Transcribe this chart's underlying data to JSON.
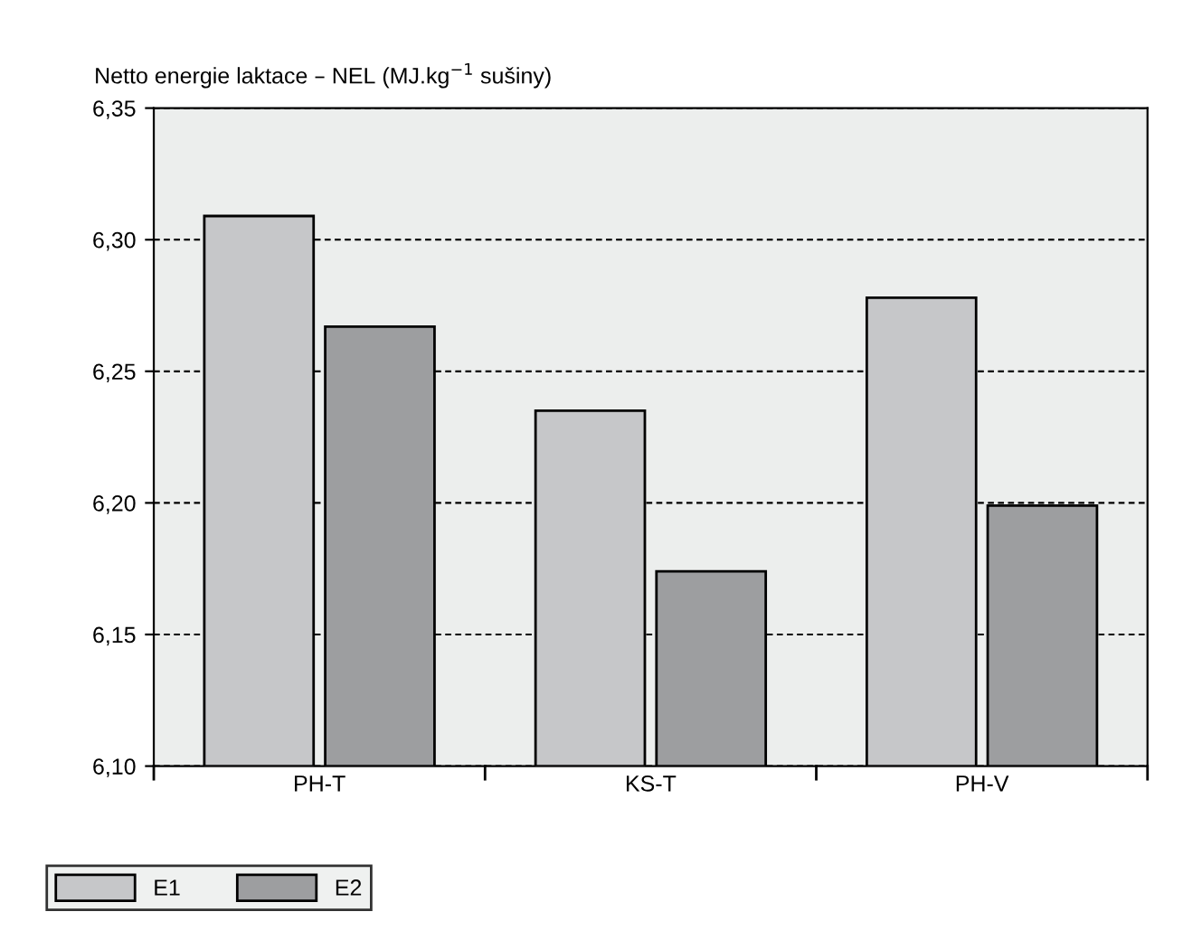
{
  "chart_data": {
    "type": "bar",
    "ylabel": "Netto energie laktace – NEL (MJ.kg$^{−1}$ sušiny)",
    "categories": [
      "PH-T",
      "KS-T",
      "PH-V"
    ],
    "series": [
      {
        "name": "E1",
        "color": "#c6c7c9",
        "values": [
          6.309,
          6.235,
          6.278
        ]
      },
      {
        "name": "E2",
        "color": "#9d9ea0",
        "values": [
          6.267,
          6.174,
          6.199
        ]
      }
    ],
    "ylim": [
      6.1,
      6.35
    ],
    "yticks": [
      {
        "value": 6.1,
        "label": "6,10"
      },
      {
        "value": 6.15,
        "label": "6,15"
      },
      {
        "value": 6.2,
        "label": "6,20"
      },
      {
        "value": 6.25,
        "label": "6,25"
      },
      {
        "value": 6.3,
        "label": "6,30"
      },
      {
        "value": 6.35,
        "label": "6,35"
      }
    ],
    "grid": "y",
    "legend": "bottom left"
  }
}
